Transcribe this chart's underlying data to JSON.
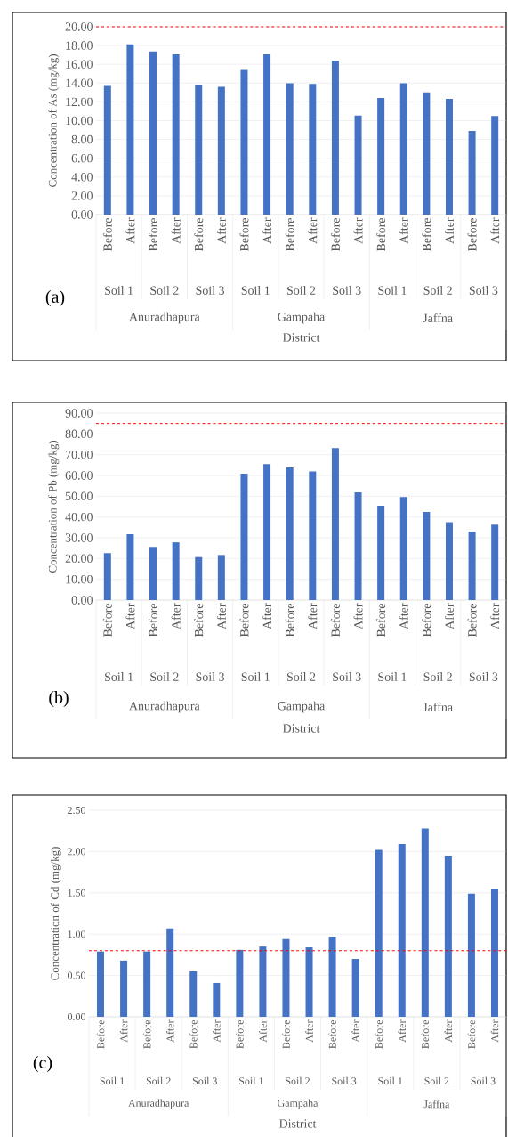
{
  "chart_data": [
    {
      "type": "bar",
      "ylabel": "Concentration of As (mg/kg)",
      "xlabel": "District",
      "color": "#4472c4",
      "grid": "y",
      "categories": [
        "Before",
        "After",
        "Before",
        "After",
        "Before",
        "After",
        "Before",
        "After",
        "Before",
        "After",
        "Before",
        "After",
        "Before",
        "After",
        "Before",
        "After",
        "Before",
        "After"
      ],
      "values": [
        13.69,
        18.13,
        17.37,
        17.05,
        13.76,
        13.59,
        15.39,
        17.05,
        13.97,
        13.9,
        16.4,
        10.54,
        12.41,
        13.97,
        13.0,
        12.31,
        8.91,
        10.5
      ],
      "ylim": [
        0,
        20
      ],
      "yticks": [
        {
          "value": 0,
          "label": "0.00"
        },
        {
          "value": 2,
          "label": "2.00"
        },
        {
          "value": 4,
          "label": "4.00"
        },
        {
          "value": 6,
          "label": "6.00"
        },
        {
          "value": 8,
          "label": "8.00"
        },
        {
          "value": 10,
          "label": "10.00"
        },
        {
          "value": 12,
          "label": "12.00"
        },
        {
          "value": 14,
          "label": "14.00"
        },
        {
          "value": 16,
          "label": "16.00"
        },
        {
          "value": 18,
          "label": "18.00"
        },
        {
          "value": 20,
          "label": "20.00"
        }
      ],
      "ref_lines": [
        {
          "axis": "y",
          "value": 20,
          "color": "#ff0000",
          "line_style": "dashed"
        }
      ],
      "annotations": [
        "Soil 1",
        "Soil 2",
        "Soil 3",
        "Soil 1",
        "Soil 2",
        "Soil 3",
        "Soil 1",
        "Soil 2",
        "Soil 3",
        "Anuradhapura",
        "Gampaha",
        "Jaffna",
        "(a)"
      ]
    },
    {
      "type": "bar",
      "ylabel": "Concentration of Pb (mg/kg)",
      "xlabel": "District",
      "color": "#4472c4",
      "grid": "y",
      "categories": [
        "Before",
        "After",
        "Before",
        "After",
        "Before",
        "After",
        "Before",
        "After",
        "Before",
        "After",
        "Before",
        "After",
        "Before",
        "After",
        "Before",
        "After",
        "Before",
        "After"
      ],
      "values": [
        22.6,
        31.7,
        25.6,
        27.8,
        20.7,
        21.7,
        60.9,
        65.5,
        63.8,
        61.9,
        73.2,
        51.8,
        45.4,
        49.6,
        42.4,
        37.5,
        33.0,
        36.3
      ],
      "ylim": [
        0,
        90
      ],
      "yticks": [
        {
          "value": 0,
          "label": "0.00"
        },
        {
          "value": 10,
          "label": "10.00"
        },
        {
          "value": 20,
          "label": "20.00"
        },
        {
          "value": 30,
          "label": "30.00"
        },
        {
          "value": 40,
          "label": "40.00"
        },
        {
          "value": 50,
          "label": "50.00"
        },
        {
          "value": 60,
          "label": "60.00"
        },
        {
          "value": 70,
          "label": "70.00"
        },
        {
          "value": 80,
          "label": "80.00"
        },
        {
          "value": 90,
          "label": "90.00"
        }
      ],
      "ref_lines": [
        {
          "axis": "y",
          "value": 85,
          "color": "#ff0000",
          "line_style": "dashed"
        }
      ],
      "annotations": [
        "Soil 1",
        "Soil 2",
        "Soil 3",
        "Soil 1",
        "Soil 2",
        "Soil 3",
        "Soil 1",
        "Soil 2",
        "Soil 3",
        "Anuradhapura",
        "Gampaha",
        "Jaffna",
        "(b)"
      ]
    },
    {
      "type": "bar",
      "ylabel": "Concentration of Cd (mg/kg)",
      "xlabel": "District",
      "color": "#4472c4",
      "grid": "y",
      "categories": [
        "Before",
        "After",
        "Before",
        "After",
        "Before",
        "After",
        "Before",
        "After",
        "Before",
        "After",
        "Before",
        "After",
        "Before",
        "After",
        "Before",
        "After",
        "Before",
        "After"
      ],
      "values": [
        0.79,
        0.68,
        0.79,
        1.07,
        0.55,
        0.41,
        0.81,
        0.85,
        0.94,
        0.84,
        0.97,
        0.7,
        2.02,
        2.09,
        2.28,
        1.95,
        1.49,
        1.55
      ],
      "ylim": [
        0,
        2.5
      ],
      "yticks": [
        {
          "value": 0,
          "label": "0.00"
        },
        {
          "value": 0.5,
          "label": "0.50"
        },
        {
          "value": 1,
          "label": "1.00"
        },
        {
          "value": 1.5,
          "label": "1.50"
        },
        {
          "value": 2,
          "label": "2.00"
        },
        {
          "value": 2.5,
          "label": "2.50"
        }
      ],
      "ref_lines": [
        {
          "axis": "y",
          "value": 0.8,
          "color": "#ff0000",
          "line_style": "dashed"
        }
      ],
      "annotations": [
        "Soil 1",
        "Soil 2",
        "Soil 3",
        "Soil 1",
        "Soil 2",
        "Soil 3",
        "Soil 1",
        "Soil 2",
        "Soil 3",
        "Anuradhapura",
        "Gampaha",
        "Jaffna",
        "(c)"
      ]
    }
  ]
}
